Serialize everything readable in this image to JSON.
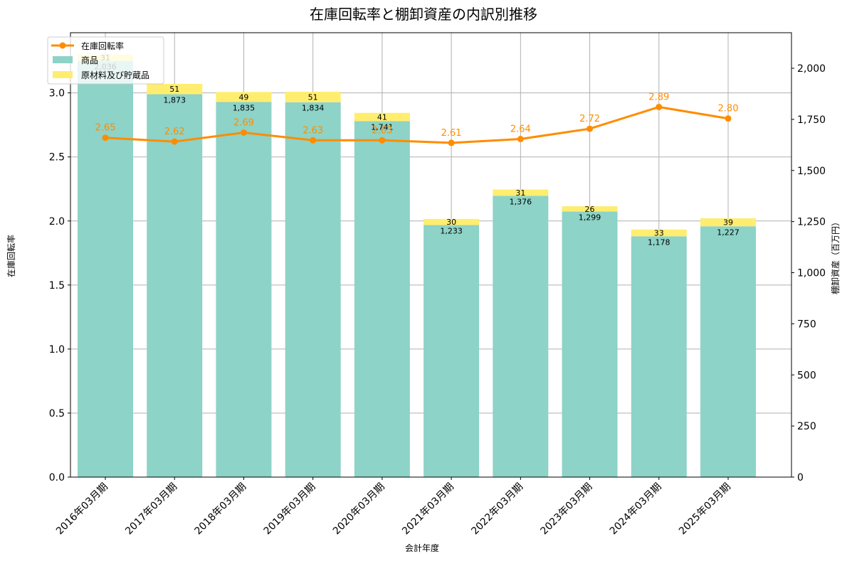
{
  "chart_data": {
    "type": "bar+line",
    "title": "在庫回転率と棚卸資産の内訳別推移",
    "xlabel": "会計年度",
    "ylabel_left": "在庫回転率",
    "ylabel_right": "棚卸資産（百万円）",
    "categories": [
      "2016年03月期",
      "2017年03月期",
      "2018年03月期",
      "2019年03月期",
      "2020年03月期",
      "2021年03月期",
      "2022年03月期",
      "2023年03月期",
      "2024年03月期",
      "2025年03月期"
    ],
    "series": [
      {
        "name": "商品",
        "type": "stacked-bar",
        "axis": "right",
        "color": "#8dd3c7",
        "values": [
          2036,
          1873,
          1835,
          1834,
          1741,
          1233,
          1376,
          1299,
          1178,
          1227
        ],
        "labels": [
          "2,036",
          "1,873",
          "1,835",
          "1,834",
          "1,741",
          "1,233",
          "1,376",
          "1,299",
          "1,178",
          "1,227"
        ]
      },
      {
        "name": "原材料及び貯蔵品",
        "type": "stacked-bar",
        "axis": "right",
        "color": "#ffed6f",
        "values": [
          31,
          51,
          49,
          51,
          41,
          30,
          31,
          26,
          33,
          39
        ],
        "labels": [
          "31",
          "51",
          "49",
          "51",
          "41",
          "30",
          "31",
          "26",
          "33",
          "39"
        ]
      },
      {
        "name": "在庫回転率",
        "type": "line",
        "axis": "left",
        "color": "#ff8c00",
        "values": [
          2.65,
          2.62,
          2.69,
          2.63,
          2.63,
          2.61,
          2.64,
          2.72,
          2.89,
          2.8
        ],
        "labels": [
          "2.65",
          "2.62",
          "2.69",
          "2.63",
          "2.63",
          "2.61",
          "2.64",
          "2.72",
          "2.89",
          "2.80"
        ]
      }
    ],
    "ylim_left": [
      0,
      3.47
    ],
    "ylim_right": [
      0,
      2174
    ],
    "yticks_left": [
      "0.0",
      "0.5",
      "1.0",
      "1.5",
      "2.0",
      "2.5",
      "3.0"
    ],
    "yticks_left_values": [
      0,
      0.5,
      1.0,
      1.5,
      2.0,
      2.5,
      3.0
    ],
    "yticks_right": [
      "0",
      "250",
      "500",
      "750",
      "1,000",
      "1,250",
      "1,500",
      "1,750",
      "2,000"
    ],
    "yticks_right_values": [
      0,
      250,
      500,
      750,
      1000,
      1250,
      1500,
      1750,
      2000
    ],
    "grid": true,
    "legend_position": "upper left",
    "legend": [
      "在庫回転率",
      "商品",
      "原材料及び貯蔵品"
    ]
  }
}
